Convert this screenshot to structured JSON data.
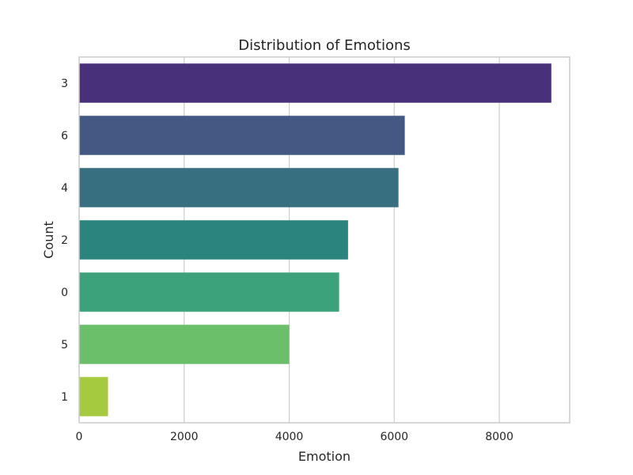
{
  "chart_data": {
    "type": "bar",
    "orientation": "horizontal",
    "title": "Distribution of Emotions",
    "xlabel": "Emotion",
    "ylabel": "Count",
    "categories": [
      "3",
      "6",
      "4",
      "2",
      "0",
      "5",
      "1"
    ],
    "values": [
      8990,
      6200,
      6080,
      5120,
      4950,
      4000,
      550
    ],
    "colors": [
      "#48317a",
      "#435983",
      "#376f80",
      "#2b857e",
      "#3ba27b",
      "#6bbf6b",
      "#a5ca3f"
    ],
    "xlim": [
      0,
      9340
    ],
    "xticks": [
      0,
      2000,
      4000,
      6000,
      8000
    ],
    "grid": true,
    "legend": "none"
  }
}
